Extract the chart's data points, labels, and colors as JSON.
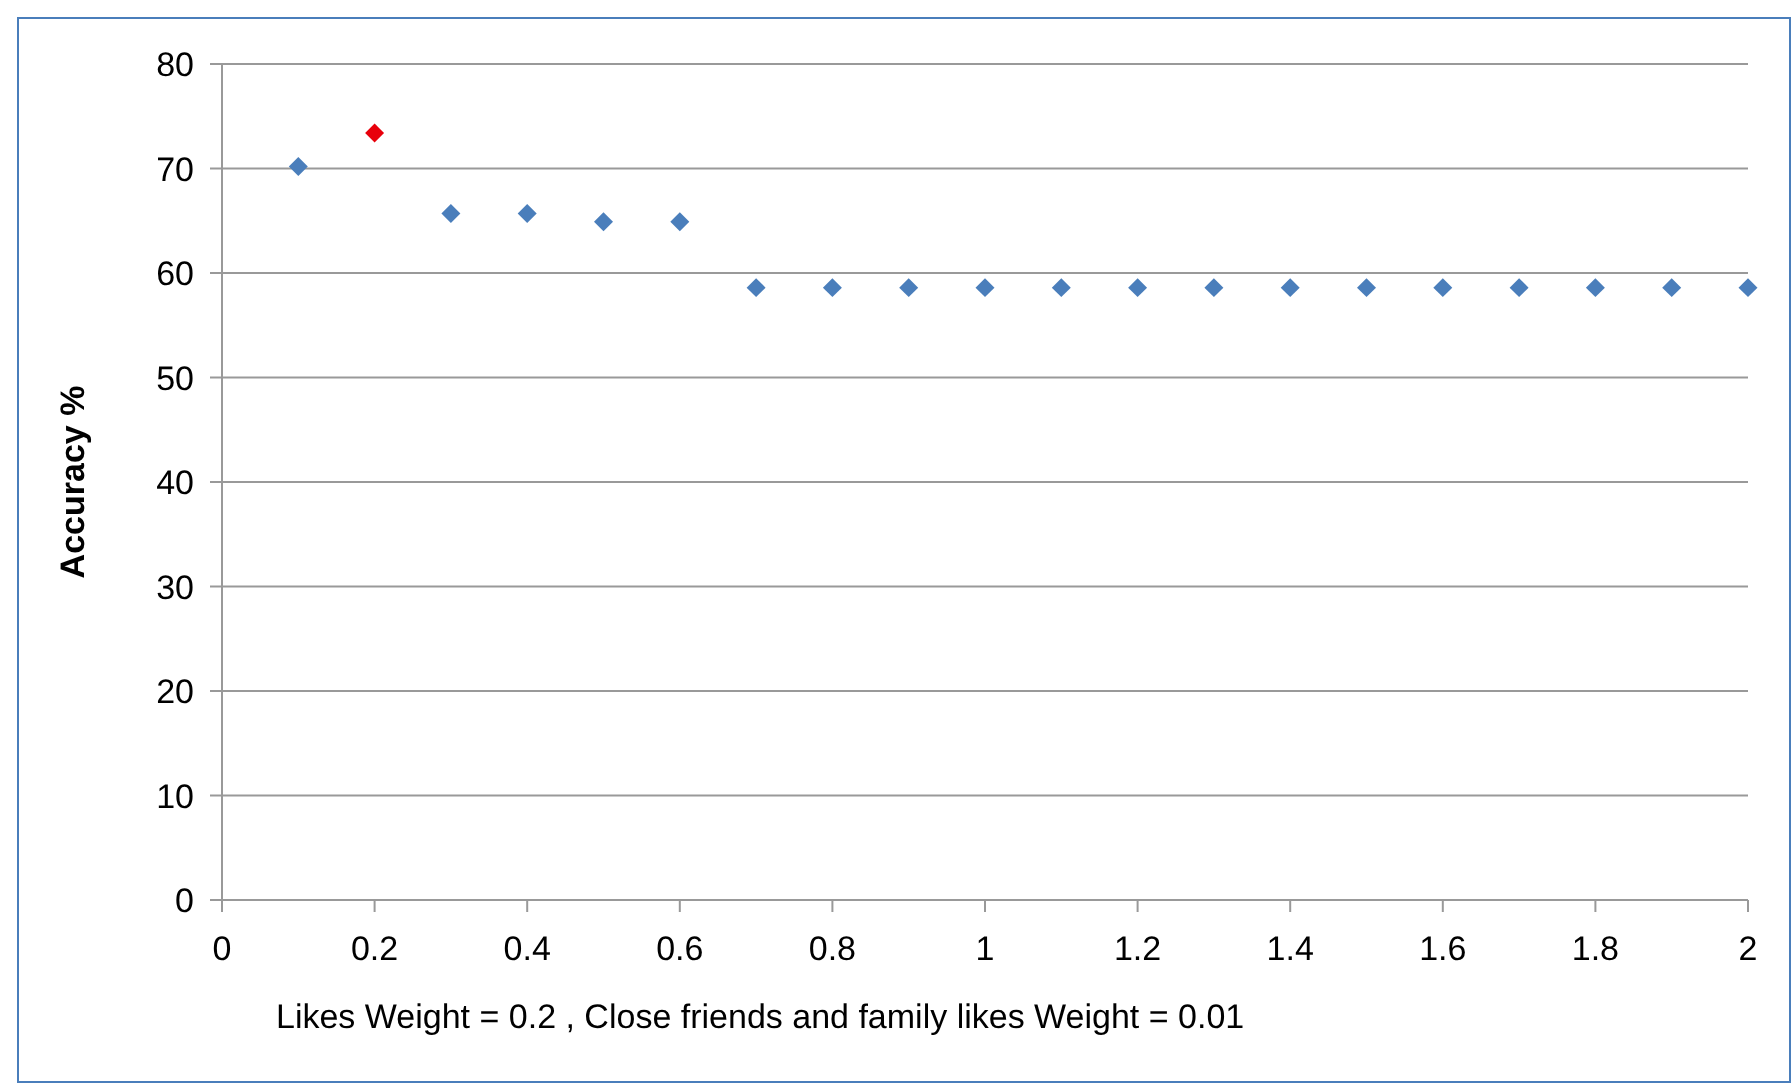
{
  "chart_data": {
    "type": "scatter",
    "xlabel": "Likes Weight = 0.2 , Close friends and family likes Weight = 0.01",
    "ylabel": "Accuracy %",
    "x": [
      0.1,
      0.2,
      0.3,
      0.4,
      0.5,
      0.6,
      0.7,
      0.8,
      0.9,
      1.0,
      1.1,
      1.2,
      1.3,
      1.4,
      1.5,
      1.6,
      1.7,
      1.8,
      1.9,
      2.0
    ],
    "values": [
      70.2,
      73.4,
      65.7,
      65.7,
      64.9,
      64.9,
      58.6,
      58.6,
      58.6,
      58.6,
      58.6,
      58.6,
      58.6,
      58.6,
      58.6,
      58.6,
      58.6,
      58.6,
      58.6,
      58.6
    ],
    "colors": [
      "#4a7ebb",
      "#e8000b",
      "#4a7ebb",
      "#4a7ebb",
      "#4a7ebb",
      "#4a7ebb",
      "#4a7ebb",
      "#4a7ebb",
      "#4a7ebb",
      "#4a7ebb",
      "#4a7ebb",
      "#4a7ebb",
      "#4a7ebb",
      "#4a7ebb",
      "#4a7ebb",
      "#4a7ebb",
      "#4a7ebb",
      "#4a7ebb",
      "#4a7ebb",
      "#4a7ebb"
    ],
    "xlim": [
      0,
      2
    ],
    "xticks": [
      0,
      0.2,
      0.4,
      0.6,
      0.8,
      1,
      1.2,
      1.4,
      1.6,
      1.8,
      2
    ],
    "ylim": [
      0,
      80
    ],
    "yticks": [
      0,
      10,
      20,
      30,
      40,
      50,
      60,
      70,
      80
    ],
    "grid": "y",
    "marker": "diamond"
  }
}
